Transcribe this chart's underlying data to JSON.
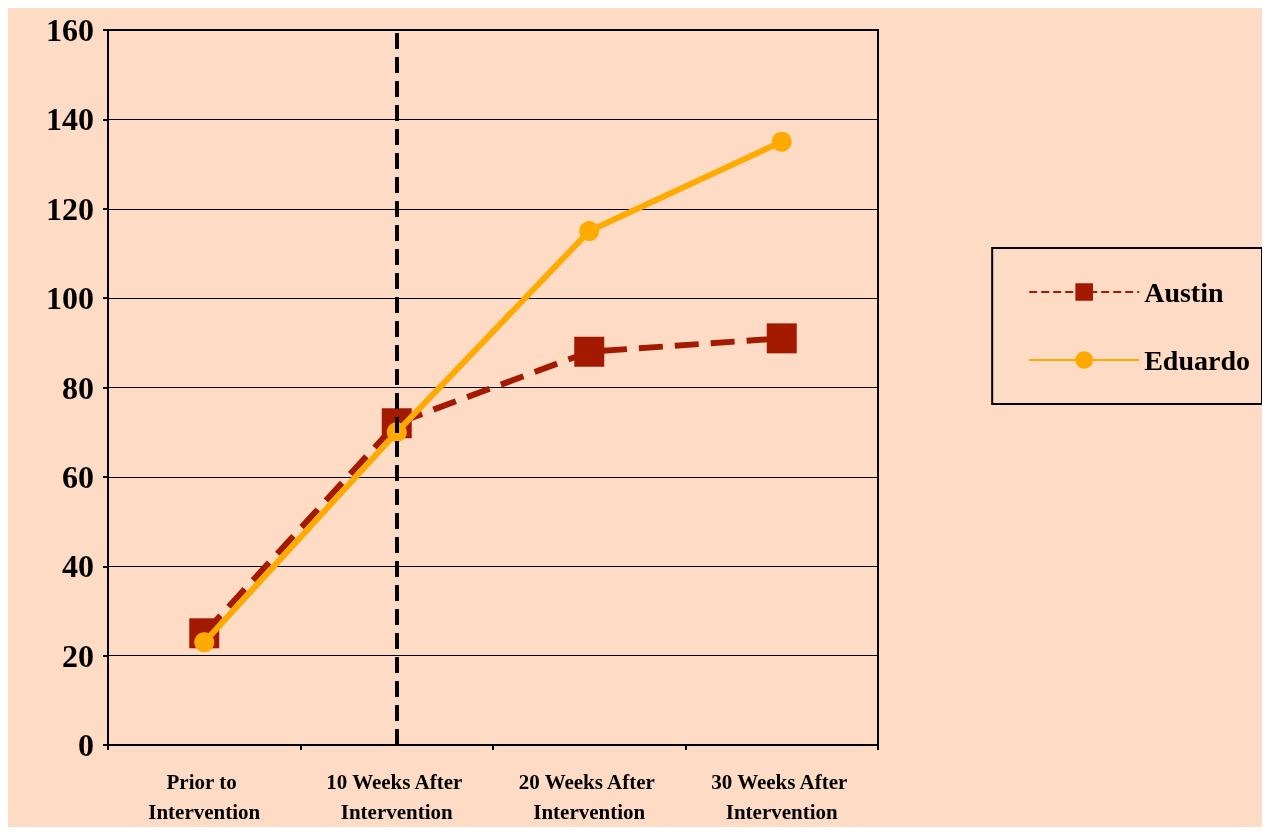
{
  "chart_data": {
    "type": "line",
    "categories": [
      "Prior to Intervention",
      "10 Weeks After Intervention",
      "20 Weeks After Intervention",
      "30 Weeks After Intervention"
    ],
    "series": [
      {
        "name": "Austin",
        "color": "#a31a00",
        "values": [
          25,
          72,
          88,
          91
        ],
        "marker": "square",
        "line_style": "dashed"
      },
      {
        "name": "Eduardo",
        "color": "#ffaa00",
        "values": [
          23,
          70,
          115,
          135
        ],
        "marker": "circle",
        "line_style": "solid"
      }
    ],
    "ylim": [
      0,
      160
    ],
    "yticks": [
      0,
      20,
      40,
      60,
      80,
      100,
      120,
      140,
      160
    ],
    "grid": "y",
    "legend": "right",
    "ref_lines": [
      {
        "axis": "x",
        "value": "10 Weeks After Intervention",
        "color": "#000000",
        "line_style": "dashed"
      }
    ]
  }
}
